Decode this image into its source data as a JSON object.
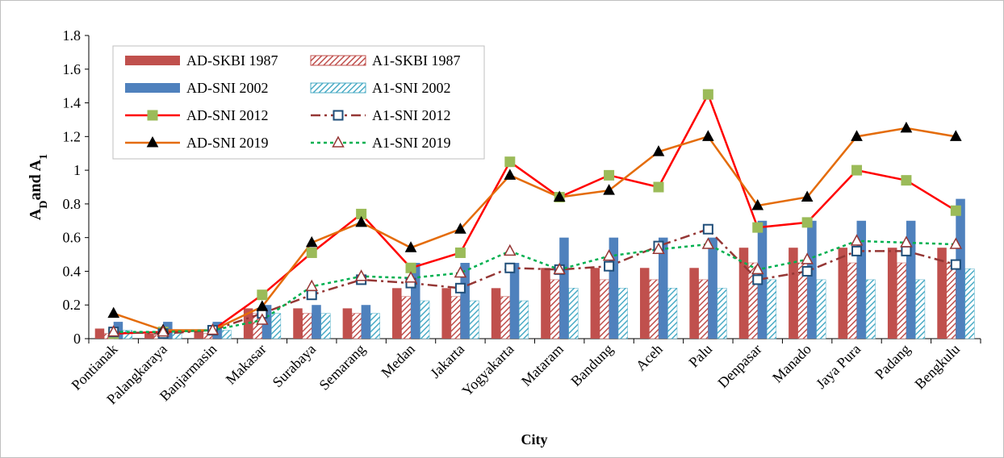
{
  "chart_data": {
    "type": "combo",
    "x_label": "City",
    "y_label_parts": [
      {
        "text": "A"
      },
      {
        "text": "D",
        "sub": true
      },
      {
        "text": "and A"
      },
      {
        "text": "1",
        "sub": true
      }
    ],
    "categories": [
      "Pontianak",
      "Palangkaraya",
      "Banjarmasin",
      "Makasar",
      "Surabaya",
      "Semarang",
      "Medan",
      "Jakarta",
      "Yogyakarta",
      "Mataram",
      "Bandung",
      "Aceh",
      "Palu",
      "Denpasar",
      "Manado",
      "Jaya Pura",
      "Padang",
      "Bengkulu"
    ],
    "ylim": [
      0,
      1.8
    ],
    "yticks": [
      0,
      0.2,
      0.4,
      0.6,
      0.8,
      1,
      1.2,
      1.4,
      1.6,
      1.8
    ],
    "grid": false,
    "legend": "upper-left",
    "series": [
      {
        "name": "AD-SKBI 1987",
        "kind": "bar",
        "color": "#c0504d",
        "hatch": false,
        "values": [
          0.06,
          0.03,
          0.05,
          0.18,
          0.18,
          0.18,
          0.3,
          0.3,
          0.3,
          0.42,
          0.42,
          0.42,
          0.42,
          0.54,
          0.54,
          0.54,
          0.54,
          0.54
        ]
      },
      {
        "name": "A1-SKBI 1987",
        "kind": "bar",
        "color": "#c0504d",
        "hatch": true,
        "values": [
          0.03,
          0.02,
          0.03,
          0.15,
          0.15,
          0.15,
          0.25,
          0.25,
          0.25,
          0.35,
          0.35,
          0.35,
          0.35,
          0.45,
          0.45,
          0.45,
          0.45,
          0.45
        ]
      },
      {
        "name": "AD-SNI 2002",
        "kind": "bar",
        "color": "#4f81bd",
        "hatch": false,
        "values": [
          0.1,
          0.1,
          0.1,
          0.2,
          0.2,
          0.2,
          0.45,
          0.45,
          0.45,
          0.6,
          0.6,
          0.6,
          0.6,
          0.7,
          0.7,
          0.7,
          0.7,
          0.83
        ]
      },
      {
        "name": "A1-SNI 2002",
        "kind": "bar",
        "color": "#4bacc6",
        "hatch": true,
        "values": [
          0.05,
          0.05,
          0.05,
          0.15,
          0.15,
          0.15,
          0.225,
          0.225,
          0.225,
          0.3,
          0.3,
          0.3,
          0.3,
          0.35,
          0.35,
          0.35,
          0.35,
          0.415
        ]
      },
      {
        "name": "AD-SNI 2012",
        "kind": "line",
        "color": "#ff0000",
        "dash": "solid",
        "marker": "square",
        "marker_fill": "#9bbb59",
        "marker_edge": "#9bbb59",
        "values": [
          0.03,
          0.04,
          0.05,
          0.26,
          0.51,
          0.74,
          0.42,
          0.51,
          1.05,
          0.84,
          0.97,
          0.9,
          1.45,
          0.66,
          0.69,
          1.0,
          0.94,
          0.76
        ]
      },
      {
        "name": "A1-SNI 2012",
        "kind": "line",
        "color": "#953735",
        "dash": "dashdot",
        "marker": "square",
        "marker_fill": "#ffffff",
        "marker_edge": "#1f4e79",
        "values": [
          0.04,
          0.03,
          0.05,
          0.15,
          0.26,
          0.35,
          0.33,
          0.3,
          0.42,
          0.41,
          0.43,
          0.55,
          0.65,
          0.35,
          0.4,
          0.52,
          0.52,
          0.44
        ]
      },
      {
        "name": "AD-SNI 2019",
        "kind": "line",
        "color": "#e46c0a",
        "dash": "solid",
        "marker": "triangle",
        "marker_fill": "#000000",
        "marker_edge": "#000000",
        "values": [
          0.15,
          0.05,
          0.05,
          0.19,
          0.57,
          0.69,
          0.54,
          0.65,
          0.97,
          0.84,
          0.88,
          1.11,
          1.2,
          0.79,
          0.84,
          1.2,
          1.25,
          1.2
        ]
      },
      {
        "name": "A1-SNI 2019",
        "kind": "line",
        "color": "#00b050",
        "dash": "dotted",
        "marker": "triangle",
        "marker_fill": "#ffffff",
        "marker_edge": "#953735",
        "values": [
          0.04,
          0.04,
          0.05,
          0.11,
          0.31,
          0.37,
          0.36,
          0.39,
          0.52,
          0.41,
          0.49,
          0.53,
          0.56,
          0.41,
          0.47,
          0.58,
          0.57,
          0.56
        ]
      }
    ]
  }
}
